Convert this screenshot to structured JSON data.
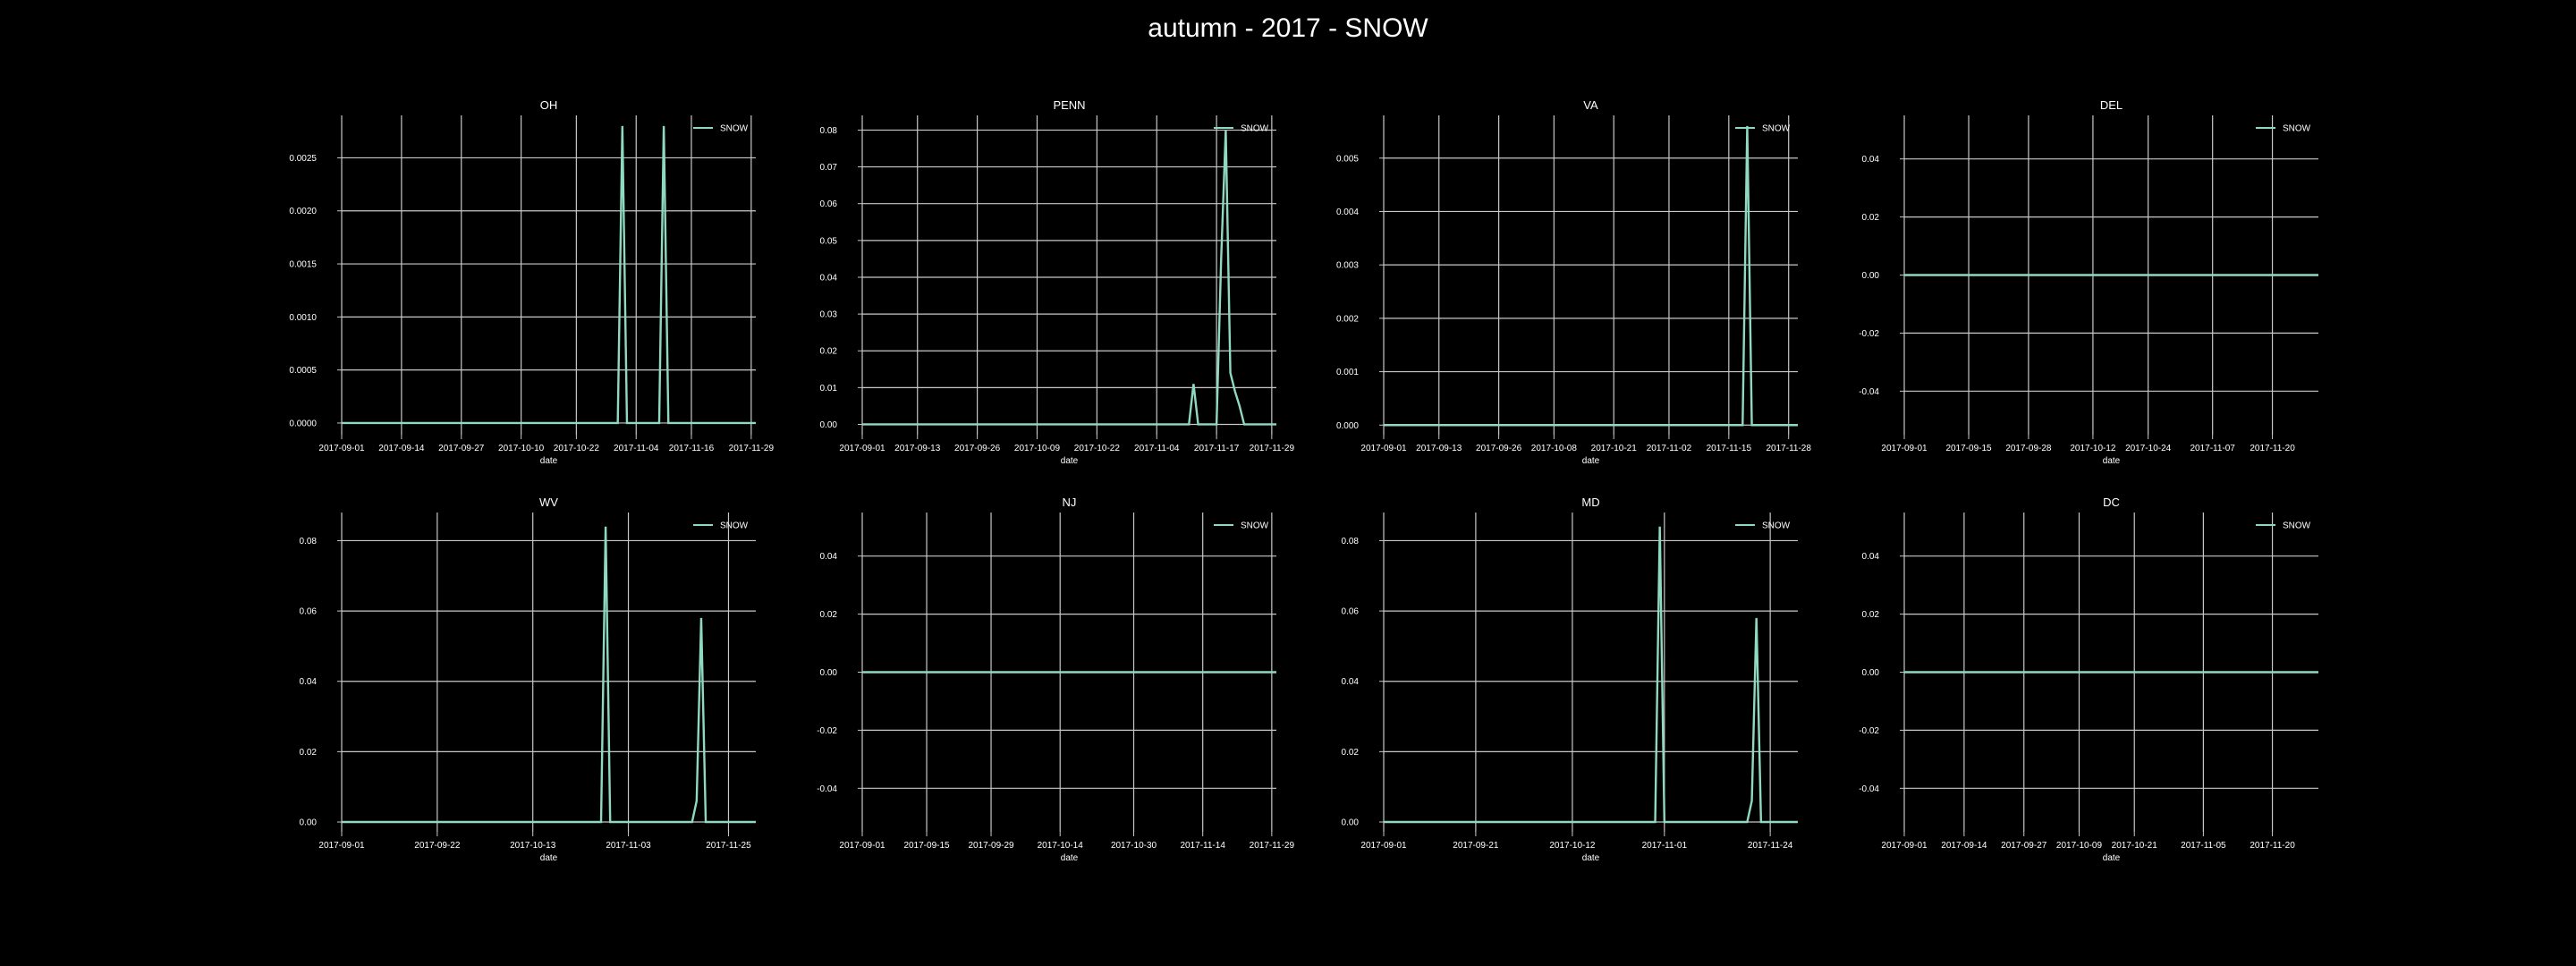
{
  "title": "autumn - 2017 - SNOW",
  "colors": {
    "background": "#000000",
    "text": "#ffffff",
    "grid": "#c8c8c8",
    "series": "#8fd9c0"
  },
  "chart_data": [
    {
      "type": "line",
      "title": "OH",
      "xlabel": "date",
      "ylabel": "",
      "grid": true,
      "legend_position": "top-right",
      "x_range": [
        "2017-09-01",
        "2017-11-30"
      ],
      "ylim": [
        -0.00011,
        0.0029
      ],
      "x_ticks": [
        "2017-09-01",
        "2017-09-14",
        "2017-09-27",
        "2017-10-10",
        "2017-10-22",
        "2017-11-04",
        "2017-11-16",
        "2017-11-29"
      ],
      "y_ticks": [
        "0.0000",
        "0.0005",
        "0.0010",
        "0.0015",
        "0.0020",
        "0.0025"
      ],
      "series": [
        {
          "name": "SNOW",
          "points": [
            [
              "2017-09-01",
              0
            ],
            [
              "2017-10-31",
              0
            ],
            [
              "2017-11-01",
              0.0028
            ],
            [
              "2017-11-02",
              0
            ],
            [
              "2017-11-09",
              0
            ],
            [
              "2017-11-10",
              0.0028
            ],
            [
              "2017-11-11",
              0
            ],
            [
              "2017-11-30",
              0
            ]
          ]
        }
      ]
    },
    {
      "type": "line",
      "title": "PENN",
      "xlabel": "date",
      "ylabel": "",
      "grid": true,
      "legend_position": "top-right",
      "x_range": [
        "2017-09-01",
        "2017-11-30"
      ],
      "ylim": [
        -0.0028,
        0.084
      ],
      "x_ticks": [
        "2017-09-01",
        "2017-09-13",
        "2017-09-26",
        "2017-10-09",
        "2017-10-22",
        "2017-11-04",
        "2017-11-17",
        "2017-11-29"
      ],
      "y_ticks": [
        "0.00",
        "0.01",
        "0.02",
        "0.03",
        "0.04",
        "0.05",
        "0.06",
        "0.07",
        "0.08"
      ],
      "series": [
        {
          "name": "SNOW",
          "points": [
            [
              "2017-09-01",
              0
            ],
            [
              "2017-11-11",
              0
            ],
            [
              "2017-11-12",
              0.011
            ],
            [
              "2017-11-13",
              0
            ],
            [
              "2017-11-17",
              0
            ],
            [
              "2017-11-18",
              0.045
            ],
            [
              "2017-11-19",
              0.08
            ],
            [
              "2017-11-20",
              0.014
            ],
            [
              "2017-11-21",
              0.009
            ],
            [
              "2017-11-22",
              0.005
            ],
            [
              "2017-11-23",
              0
            ],
            [
              "2017-11-30",
              0
            ]
          ]
        }
      ]
    },
    {
      "type": "line",
      "title": "VA",
      "xlabel": "date",
      "ylabel": "",
      "grid": true,
      "legend_position": "top-right",
      "x_range": [
        "2017-09-01",
        "2017-11-30"
      ],
      "ylim": [
        -0.00018,
        0.0058
      ],
      "x_ticks": [
        "2017-09-01",
        "2017-09-13",
        "2017-09-26",
        "2017-10-08",
        "2017-10-21",
        "2017-11-02",
        "2017-11-15",
        "2017-11-28"
      ],
      "y_ticks": [
        "0.000",
        "0.001",
        "0.002",
        "0.003",
        "0.004",
        "0.005"
      ],
      "series": [
        {
          "name": "SNOW",
          "points": [
            [
              "2017-09-01",
              0
            ],
            [
              "2017-11-18",
              0
            ],
            [
              "2017-11-19",
              0.0056
            ],
            [
              "2017-11-20",
              0
            ],
            [
              "2017-11-30",
              0
            ]
          ]
        }
      ]
    },
    {
      "type": "line",
      "title": "DEL",
      "xlabel": "date",
      "ylabel": "",
      "grid": true,
      "legend_position": "top-right",
      "x_range": [
        "2017-09-01",
        "2017-11-30"
      ],
      "ylim": [
        -0.055,
        0.055
      ],
      "x_ticks": [
        "2017-09-01",
        "2017-09-15",
        "2017-09-28",
        "2017-10-12",
        "2017-10-24",
        "2017-11-07",
        "2017-11-20"
      ],
      "y_ticks": [
        "-0.04",
        "-0.02",
        "0.00",
        "0.02",
        "0.04"
      ],
      "series": [
        {
          "name": "SNOW",
          "points": [
            [
              "2017-09-01",
              0
            ],
            [
              "2017-11-30",
              0
            ]
          ]
        }
      ]
    },
    {
      "type": "line",
      "title": "WV",
      "xlabel": "date",
      "ylabel": "",
      "grid": true,
      "legend_position": "top-right",
      "x_range": [
        "2017-09-01",
        "2017-12-01"
      ],
      "ylim": [
        -0.0028,
        0.088
      ],
      "x_ticks": [
        "2017-09-01",
        "2017-09-22",
        "2017-10-13",
        "2017-11-03",
        "2017-11-25"
      ],
      "y_ticks": [
        "0.00",
        "0.02",
        "0.04",
        "0.06",
        "0.08"
      ],
      "series": [
        {
          "name": "SNOW",
          "points": [
            [
              "2017-09-01",
              0
            ],
            [
              "2017-10-28",
              0
            ],
            [
              "2017-10-29",
              0.084
            ],
            [
              "2017-10-30",
              0
            ],
            [
              "2017-11-17",
              0
            ],
            [
              "2017-11-18",
              0.006
            ],
            [
              "2017-11-19",
              0.058
            ],
            [
              "2017-11-20",
              0
            ],
            [
              "2017-12-01",
              0
            ]
          ]
        }
      ]
    },
    {
      "type": "line",
      "title": "NJ",
      "xlabel": "date",
      "ylabel": "",
      "grid": true,
      "legend_position": "top-right",
      "x_range": [
        "2017-09-01",
        "2017-11-30"
      ],
      "ylim": [
        -0.055,
        0.055
      ],
      "x_ticks": [
        "2017-09-01",
        "2017-09-15",
        "2017-09-29",
        "2017-10-14",
        "2017-10-30",
        "2017-11-14",
        "2017-11-29"
      ],
      "y_ticks": [
        "-0.04",
        "-0.02",
        "0.00",
        "0.02",
        "0.04"
      ],
      "series": [
        {
          "name": "SNOW",
          "points": [
            [
              "2017-09-01",
              0
            ],
            [
              "2017-11-30",
              0
            ]
          ]
        }
      ]
    },
    {
      "type": "line",
      "title": "MD",
      "xlabel": "date",
      "ylabel": "",
      "grid": true,
      "legend_position": "top-right",
      "x_range": [
        "2017-09-01",
        "2017-11-30"
      ],
      "ylim": [
        -0.0028,
        0.088
      ],
      "x_ticks": [
        "2017-09-01",
        "2017-09-21",
        "2017-10-12",
        "2017-11-01",
        "2017-11-24"
      ],
      "y_ticks": [
        "0.00",
        "0.02",
        "0.04",
        "0.06",
        "0.08"
      ],
      "series": [
        {
          "name": "SNOW",
          "points": [
            [
              "2017-09-01",
              0
            ],
            [
              "2017-10-30",
              0
            ],
            [
              "2017-10-31",
              0.084
            ],
            [
              "2017-11-01",
              0
            ],
            [
              "2017-11-19",
              0
            ],
            [
              "2017-11-20",
              0.006
            ],
            [
              "2017-11-21",
              0.058
            ],
            [
              "2017-11-22",
              0
            ],
            [
              "2017-11-30",
              0
            ]
          ]
        }
      ]
    },
    {
      "type": "line",
      "title": "DC",
      "xlabel": "date",
      "ylabel": "",
      "grid": true,
      "legend_position": "top-right",
      "x_range": [
        "2017-09-01",
        "2017-11-30"
      ],
      "ylim": [
        -0.055,
        0.055
      ],
      "x_ticks": [
        "2017-09-01",
        "2017-09-14",
        "2017-09-27",
        "2017-10-09",
        "2017-10-21",
        "2017-11-05",
        "2017-11-20"
      ],
      "y_ticks": [
        "-0.04",
        "-0.02",
        "0.00",
        "0.02",
        "0.04"
      ],
      "series": [
        {
          "name": "SNOW",
          "points": [
            [
              "2017-09-01",
              0
            ],
            [
              "2017-11-30",
              0
            ]
          ]
        }
      ]
    }
  ]
}
